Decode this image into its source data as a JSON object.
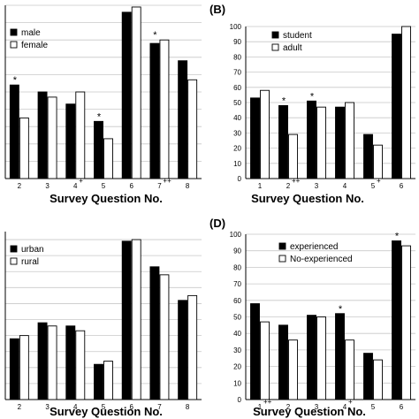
{
  "chart_data": [
    {
      "id": "A",
      "type": "bar",
      "panel_label": "",
      "xlabel": "Survey Question No.",
      "ylabel": "",
      "categories": [
        "2",
        "3",
        "4",
        "5",
        "6",
        "7",
        "8"
      ],
      "category_marks": [
        "",
        "",
        "+",
        "",
        "",
        "++",
        ""
      ],
      "series": [
        {
          "name": "male",
          "values": [
            54,
            50,
            43,
            33,
            96,
            78,
            68
          ]
        },
        {
          "name": "female",
          "values": [
            35,
            47,
            50,
            23,
            99,
            80,
            57
          ]
        }
      ],
      "star_marks": [
        "*",
        "",
        "",
        "*",
        "",
        "*",
        ""
      ],
      "ylim": [
        0,
        100
      ],
      "yticks": [],
      "legend": "top-left"
    },
    {
      "id": "B",
      "type": "bar",
      "panel_label": "(B)",
      "xlabel": "Survey Question No.",
      "ylabel": "",
      "categories": [
        "1",
        "2",
        "3",
        "4",
        "5",
        "6"
      ],
      "category_marks": [
        "",
        "++",
        "",
        "",
        "+",
        ""
      ],
      "series": [
        {
          "name": "student",
          "values": [
            53,
            48,
            51,
            47,
            29,
            95
          ]
        },
        {
          "name": "adult",
          "values": [
            58,
            29,
            47,
            50,
            22,
            100
          ]
        }
      ],
      "star_marks": [
        "",
        "*",
        "*",
        "",
        "",
        ""
      ],
      "ylim": [
        0,
        100
      ],
      "yticks": [
        0,
        10,
        20,
        30,
        40,
        50,
        60,
        70,
        80,
        90,
        100
      ],
      "legend": "top-left"
    },
    {
      "id": "C",
      "type": "bar",
      "panel_label": "",
      "xlabel": "Survey Question No.",
      "ylabel": "",
      "categories": [
        "2",
        "3",
        "4",
        "5",
        "6",
        "7",
        "8"
      ],
      "category_marks": [
        "",
        "",
        "",
        "",
        "",
        "",
        ""
      ],
      "series": [
        {
          "name": "urban",
          "values": [
            38,
            48,
            46,
            22,
            99,
            83,
            62
          ]
        },
        {
          "name": "rural",
          "values": [
            40,
            46,
            43,
            24,
            100,
            78,
            65
          ]
        }
      ],
      "star_marks": [
        "",
        "",
        "",
        "",
        "",
        "",
        ""
      ],
      "ylim": [
        0,
        105
      ],
      "yticks": [],
      "legend": "top-left"
    },
    {
      "id": "D",
      "type": "bar",
      "panel_label": "(D)",
      "xlabel": "Survey Question No.",
      "ylabel": "",
      "categories": [
        "1",
        "2",
        "3",
        "4",
        "5",
        "6"
      ],
      "category_marks": [
        "++",
        "",
        "",
        "+",
        "",
        ""
      ],
      "series": [
        {
          "name": "experienced",
          "values": [
            58,
            45,
            51,
            52,
            28,
            96
          ]
        },
        {
          "name": "No-experienced",
          "values": [
            47,
            36,
            50,
            36,
            24,
            93
          ]
        }
      ],
      "star_marks": [
        "",
        "",
        "",
        "*",
        "",
        "*"
      ],
      "ylim": [
        0,
        100
      ],
      "yticks": [
        0,
        10,
        20,
        30,
        40,
        50,
        60,
        70,
        80,
        90,
        100
      ],
      "legend": "top-left"
    }
  ]
}
